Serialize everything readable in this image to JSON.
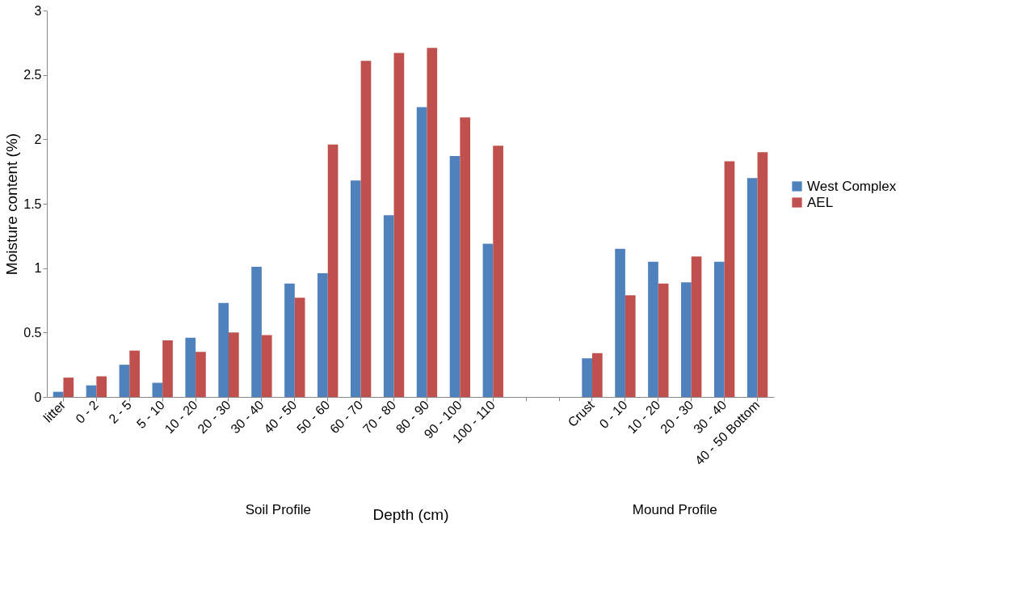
{
  "chart_data": {
    "type": "bar",
    "xlabel": "Depth (cm)",
    "ylabel": "Moisture content (%)",
    "categories": [
      "litter",
      "0 - 2",
      "2 - 5",
      "5 - 10",
      "10 - 20",
      "20 - 30",
      "30 - 40",
      "40 - 50",
      "50 - 60",
      "60 - 70",
      "70 - 80",
      "80 - 90",
      "90 - 100",
      "100 - 110",
      null,
      null,
      "Crust",
      "0 - 10",
      "10 - 20",
      "20 - 30",
      "30 - 40",
      "40 - 50 Bottom"
    ],
    "series": [
      {
        "name": "West Complex",
        "color": "#4f81bd",
        "values": [
          0.04,
          0.09,
          0.25,
          0.11,
          0.46,
          0.73,
          1.01,
          0.88,
          0.96,
          1.68,
          1.41,
          2.25,
          1.87,
          1.19,
          null,
          null,
          0.3,
          1.15,
          1.05,
          0.89,
          1.05,
          1.7
        ]
      },
      {
        "name": "AEL",
        "color": "#c0504d",
        "values": [
          0.15,
          0.16,
          0.36,
          0.44,
          0.35,
          0.5,
          0.48,
          0.77,
          1.96,
          2.61,
          2.67,
          2.71,
          2.17,
          1.95,
          null,
          null,
          0.34,
          0.79,
          0.88,
          1.09,
          1.83,
          1.9
        ]
      }
    ],
    "ylim": [
      0,
      3
    ],
    "yticks": [
      0,
      0.5,
      1,
      1.5,
      2,
      2.5,
      3
    ],
    "grid": false,
    "legend": "right",
    "annotations": [
      "Soil Profile",
      "Mound Profile"
    ]
  }
}
